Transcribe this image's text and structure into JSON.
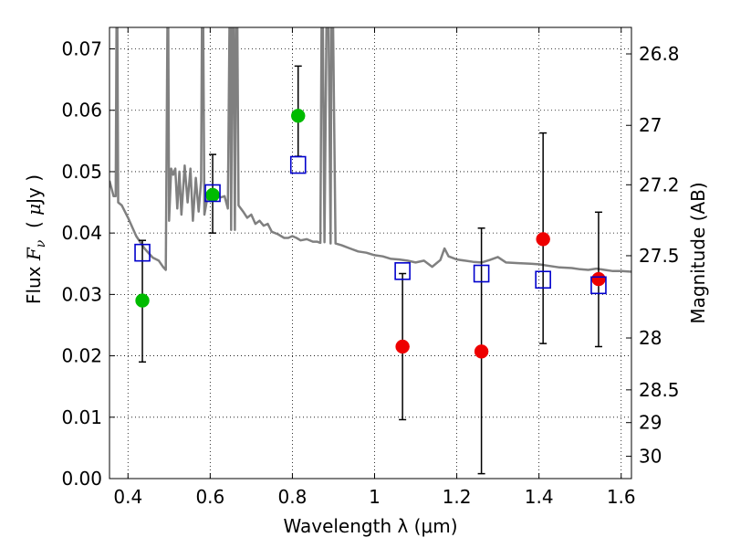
{
  "chart_data": {
    "type": "scatter",
    "xlabel": "Wavelength  λ (μm)",
    "ylabel_left": "Flux  F_ν  ( μJy )",
    "ylabel_left_parts": {
      "prefix": "Flux ",
      "var": "F",
      "sub": "ν",
      "mid": "  ( ",
      "mu": "μ",
      "suffix": "Jy )"
    },
    "ylabel_right": "Magnitude (AB)",
    "xlim": [
      0.355,
      1.625
    ],
    "ylim": [
      0.0,
      0.0735
    ],
    "x_ticks": [
      0.4,
      0.6,
      0.8,
      1.0,
      1.2,
      1.4,
      1.6
    ],
    "x_tick_labels": [
      "0.4",
      "0.6",
      "0.8",
      "1",
      "1.2",
      "1.4",
      "1.6"
    ],
    "y_ticks": [
      0.0,
      0.01,
      0.02,
      0.03,
      0.04,
      0.05,
      0.06,
      0.07
    ],
    "y_tick_labels": [
      "0.00",
      "0.01",
      "0.02",
      "0.03",
      "0.04",
      "0.05",
      "0.06",
      "0.07"
    ],
    "right_ticks": [
      {
        "label": "26.8",
        "mag": 26.8
      },
      {
        "label": "27",
        "mag": 27.0
      },
      {
        "label": "27.2",
        "mag": 27.2
      },
      {
        "label": "27.5",
        "mag": 27.5
      },
      {
        "label": "28",
        "mag": 28.0
      },
      {
        "label": "28.5",
        "mag": 28.5
      },
      {
        "label": "29",
        "mag": 29.0
      },
      {
        "label": "30",
        "mag": 30.0
      }
    ],
    "grid": true,
    "series": [
      {
        "kind": "detections",
        "color": "#00bb00",
        "marker": "circle",
        "points": [
          {
            "x": 0.435,
            "y": 0.029
          },
          {
            "x": 0.606,
            "y": 0.0462
          },
          {
            "x": 0.814,
            "y": 0.0591
          }
        ]
      },
      {
        "kind": "nondetections",
        "color": "#ee0000",
        "marker": "circle",
        "points": [
          {
            "x": 1.068,
            "y": 0.0215
          },
          {
            "x": 1.26,
            "y": 0.0207
          },
          {
            "x": 1.41,
            "y": 0.039
          },
          {
            "x": 1.545,
            "y": 0.0325
          }
        ]
      },
      {
        "kind": "model-photometry",
        "color": "#0000cc",
        "marker": "open-square",
        "points": [
          {
            "x": 0.435,
            "y": 0.0368
          },
          {
            "x": 0.606,
            "y": 0.0465
          },
          {
            "x": 0.814,
            "y": 0.0511
          },
          {
            "x": 1.068,
            "y": 0.0338
          },
          {
            "x": 1.26,
            "y": 0.0334
          },
          {
            "x": 1.41,
            "y": 0.0324
          },
          {
            "x": 1.545,
            "y": 0.0315
          }
        ]
      }
    ],
    "error_bars": [
      {
        "x": 0.435,
        "low": 0.019,
        "high": 0.0388
      },
      {
        "x": 0.606,
        "low": 0.04,
        "high": 0.0528
      },
      {
        "x": 0.814,
        "low": 0.0525,
        "high": 0.0672
      },
      {
        "x": 1.068,
        "low": 0.0096,
        "high": 0.0334
      },
      {
        "x": 1.26,
        "low": 0.0008,
        "high": 0.0408
      },
      {
        "x": 1.41,
        "low": 0.022,
        "high": 0.0563
      },
      {
        "x": 1.545,
        "low": 0.0215,
        "high": 0.0434
      }
    ],
    "model_spectrum": {
      "color": "#808080",
      "points": [
        [
          0.355,
          0.0485
        ],
        [
          0.365,
          0.046
        ],
        [
          0.37,
          0.046
        ],
        [
          0.372,
          0.074
        ],
        [
          0.374,
          0.074
        ],
        [
          0.376,
          0.045
        ],
        [
          0.385,
          0.0445
        ],
        [
          0.4,
          0.0425
        ],
        [
          0.42,
          0.0395
        ],
        [
          0.44,
          0.0375
        ],
        [
          0.46,
          0.036
        ],
        [
          0.475,
          0.0355
        ],
        [
          0.485,
          0.0345
        ],
        [
          0.492,
          0.034
        ],
        [
          0.496,
          0.074
        ],
        [
          0.498,
          0.074
        ],
        [
          0.5,
          0.042
        ],
        [
          0.505,
          0.0505
        ],
        [
          0.51,
          0.0495
        ],
        [
          0.515,
          0.0505
        ],
        [
          0.52,
          0.044
        ],
        [
          0.525,
          0.05
        ],
        [
          0.53,
          0.043
        ],
        [
          0.538,
          0.051
        ],
        [
          0.545,
          0.045
        ],
        [
          0.552,
          0.0505
        ],
        [
          0.558,
          0.042
        ],
        [
          0.565,
          0.049
        ],
        [
          0.572,
          0.0435
        ],
        [
          0.578,
          0.0485
        ],
        [
          0.58,
          0.074
        ],
        [
          0.583,
          0.074
        ],
        [
          0.586,
          0.043
        ],
        [
          0.595,
          0.0465
        ],
        [
          0.605,
          0.0455
        ],
        [
          0.615,
          0.0465
        ],
        [
          0.625,
          0.0458
        ],
        [
          0.635,
          0.046
        ],
        [
          0.643,
          0.044
        ],
        [
          0.647,
          0.074
        ],
        [
          0.649,
          0.074
        ],
        [
          0.651,
          0.0405
        ],
        [
          0.654,
          0.074
        ],
        [
          0.657,
          0.074
        ],
        [
          0.66,
          0.0405
        ],
        [
          0.663,
          0.074
        ],
        [
          0.666,
          0.074
        ],
        [
          0.669,
          0.0445
        ],
        [
          0.68,
          0.0435
        ],
        [
          0.69,
          0.0425
        ],
        [
          0.7,
          0.043
        ],
        [
          0.71,
          0.0415
        ],
        [
          0.72,
          0.042
        ],
        [
          0.73,
          0.0412
        ],
        [
          0.74,
          0.0415
        ],
        [
          0.75,
          0.0402
        ],
        [
          0.765,
          0.0398
        ],
        [
          0.78,
          0.0392
        ],
        [
          0.79,
          0.0392
        ],
        [
          0.8,
          0.0395
        ],
        [
          0.81,
          0.0392
        ],
        [
          0.82,
          0.0388
        ],
        [
          0.835,
          0.039
        ],
        [
          0.85,
          0.0386
        ],
        [
          0.86,
          0.0386
        ],
        [
          0.868,
          0.0384
        ],
        [
          0.871,
          0.074
        ],
        [
          0.874,
          0.074
        ],
        [
          0.878,
          0.0385
        ],
        [
          0.883,
          0.074
        ],
        [
          0.888,
          0.074
        ],
        [
          0.893,
          0.0383
        ],
        [
          0.895,
          0.074
        ],
        [
          0.899,
          0.074
        ],
        [
          0.905,
          0.0383
        ],
        [
          0.92,
          0.038
        ],
        [
          0.94,
          0.0375
        ],
        [
          0.96,
          0.037
        ],
        [
          0.98,
          0.0368
        ],
        [
          1.0,
          0.0364
        ],
        [
          1.02,
          0.0362
        ],
        [
          1.04,
          0.0358
        ],
        [
          1.06,
          0.0357
        ],
        [
          1.08,
          0.0355
        ],
        [
          1.1,
          0.0352
        ],
        [
          1.12,
          0.0355
        ],
        [
          1.14,
          0.0345
        ],
        [
          1.16,
          0.0356
        ],
        [
          1.17,
          0.0375
        ],
        [
          1.18,
          0.0362
        ],
        [
          1.2,
          0.0357
        ],
        [
          1.22,
          0.0355
        ],
        [
          1.24,
          0.0353
        ],
        [
          1.26,
          0.0352
        ],
        [
          1.28,
          0.0356
        ],
        [
          1.3,
          0.0361
        ],
        [
          1.32,
          0.0352
        ],
        [
          1.35,
          0.0351
        ],
        [
          1.38,
          0.035
        ],
        [
          1.4,
          0.0349
        ],
        [
          1.42,
          0.0347
        ],
        [
          1.45,
          0.0344
        ],
        [
          1.48,
          0.0343
        ],
        [
          1.5,
          0.0341
        ],
        [
          1.52,
          0.034
        ],
        [
          1.54,
          0.0342
        ],
        [
          1.56,
          0.034
        ],
        [
          1.58,
          0.0338
        ],
        [
          1.6,
          0.0338
        ],
        [
          1.625,
          0.0337
        ]
      ]
    }
  }
}
